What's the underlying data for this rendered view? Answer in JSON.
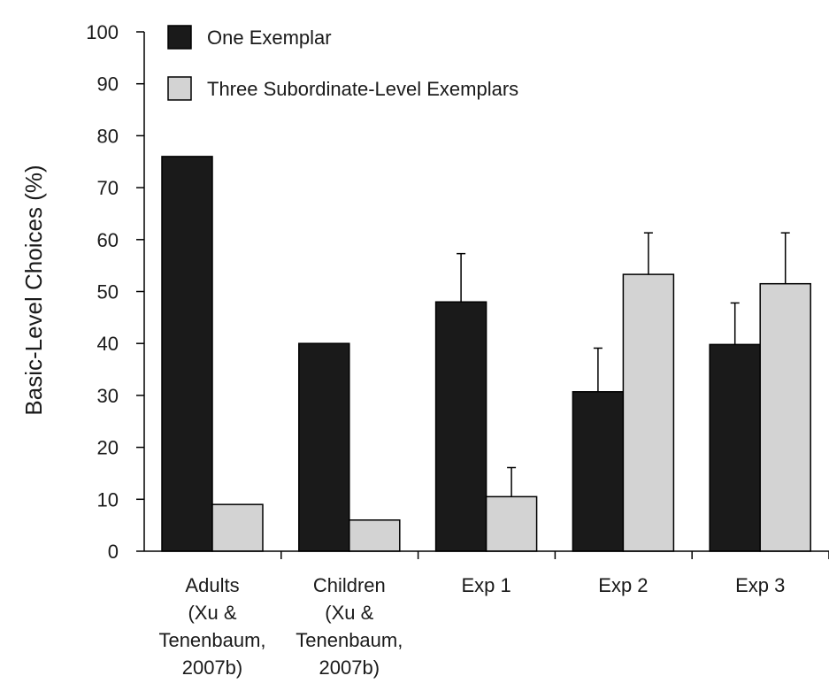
{
  "chart_data": {
    "type": "bar",
    "title": "",
    "xlabel": "",
    "ylabel": "Basic-Level Choices (%)",
    "ylim": [
      0,
      100
    ],
    "yticks": [
      0,
      10,
      20,
      30,
      40,
      50,
      60,
      70,
      80,
      90,
      100
    ],
    "categories": [
      [
        "Adults",
        "(Xu &",
        "Tenenbaum,",
        "2007b)"
      ],
      [
        "Children",
        "(Xu &",
        "Tenenbaum,",
        "2007b)"
      ],
      [
        "Exp 1"
      ],
      [
        "Exp 2"
      ],
      [
        "Exp 3"
      ]
    ],
    "series": [
      {
        "name": "One Exemplar",
        "color": "#1a1a1a",
        "values": [
          76,
          40,
          48,
          30.7,
          39.8
        ],
        "error_upper": [
          null,
          null,
          57.3,
          39.1,
          47.8
        ]
      },
      {
        "name": "Three Subordinate-Level Exemplars",
        "color": "#d3d3d3",
        "values": [
          9,
          6,
          10.5,
          53.3,
          51.5
        ],
        "error_upper": [
          null,
          null,
          16.1,
          61.3,
          61.3
        ]
      }
    ],
    "legend_position": "top-left",
    "grid": false
  }
}
